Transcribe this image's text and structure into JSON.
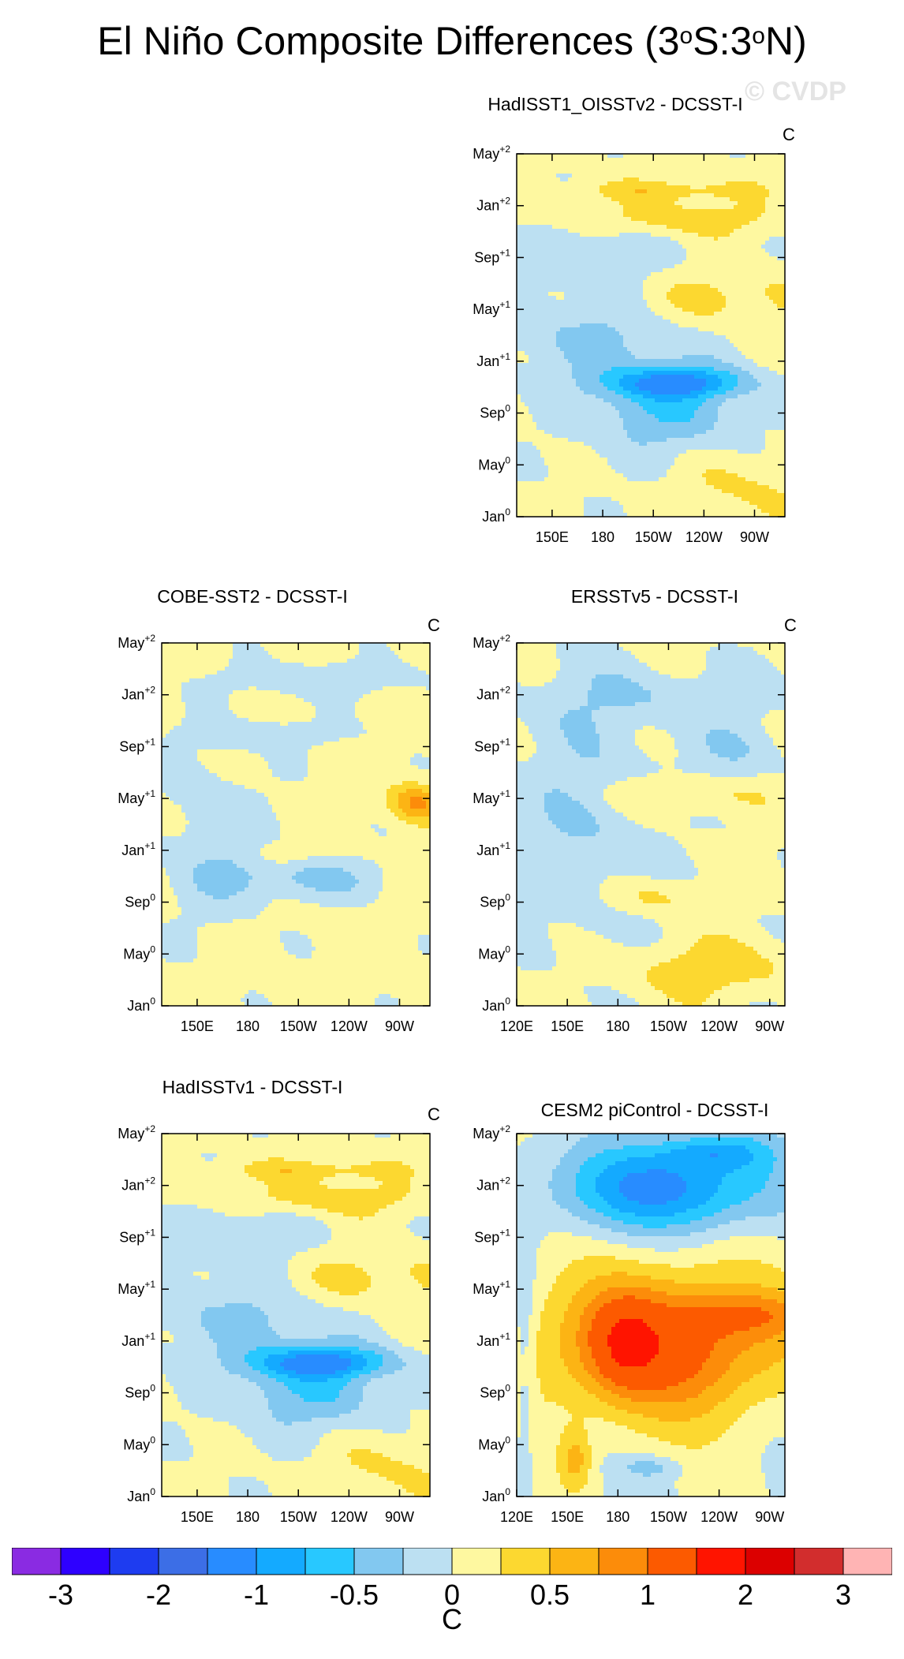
{
  "title_text": "El Niño Composite Differences (3",
  "title_deg1": "o",
  "title_mid": "S:3",
  "title_deg2": "o",
  "title_end": "N)",
  "watermark": "© CVDP",
  "unit": "C",
  "chart_data": {
    "type": "heatmap",
    "description_of_axes": "Hovmöller: longitude (x) vs composite month (y)",
    "x_tick_labels_full": [
      "120E",
      "150E",
      "180",
      "150W",
      "120W",
      "90W"
    ],
    "x_tick_labels_partial": [
      "150E",
      "180",
      "150W",
      "120W",
      "90W"
    ],
    "y_tick_labels": [
      {
        "base": "Jan",
        "sup": "0"
      },
      {
        "base": "May",
        "sup": "0"
      },
      {
        "base": "Sep",
        "sup": "0"
      },
      {
        "base": "Jan",
        "sup": "+1"
      },
      {
        "base": "May",
        "sup": "+1"
      },
      {
        "base": "Sep",
        "sup": "+1"
      },
      {
        "base": "Jan",
        "sup": "+2"
      },
      {
        "base": "May",
        "sup": "+2"
      }
    ],
    "colorbar": {
      "colors": [
        "#8a2be2",
        "#2e00ff",
        "#1e3cf0",
        "#3c6ee6",
        "#288cff",
        "#14aaff",
        "#28c8ff",
        "#82c8f0",
        "#bce0f2",
        "#fef8a0",
        "#fcd830",
        "#fcb414",
        "#fc8c0a",
        "#fc5a00",
        "#ff1400",
        "#dc0000",
        "#d22d2d",
        "#ffb4b4"
      ],
      "labels": [
        "-3",
        "-2",
        "-1",
        "-0.5",
        "0",
        "0.5",
        "1",
        "2",
        "3"
      ]
    },
    "panels": [
      {
        "id": "hadisst1-oisstv2",
        "title": "HadISST1_OISSTv2 - DCSST-I",
        "full_x": false,
        "pattern": "hadisst"
      },
      {
        "id": "cobe-sst2",
        "title": "COBE-SST2 - DCSST-I",
        "full_x": false,
        "pattern": "cobe"
      },
      {
        "id": "ersstv5",
        "title": "ERSSTv5 - DCSST-I",
        "full_x": true,
        "pattern": "ersst"
      },
      {
        "id": "hadisstv1",
        "title": "HadISSTv1 - DCSST-I",
        "full_x": false,
        "pattern": "hadisst"
      },
      {
        "id": "cesm2-picontrol",
        "title": "CESM2 piControl - DCSST-I",
        "full_x": true,
        "pattern": "cesm"
      }
    ]
  }
}
